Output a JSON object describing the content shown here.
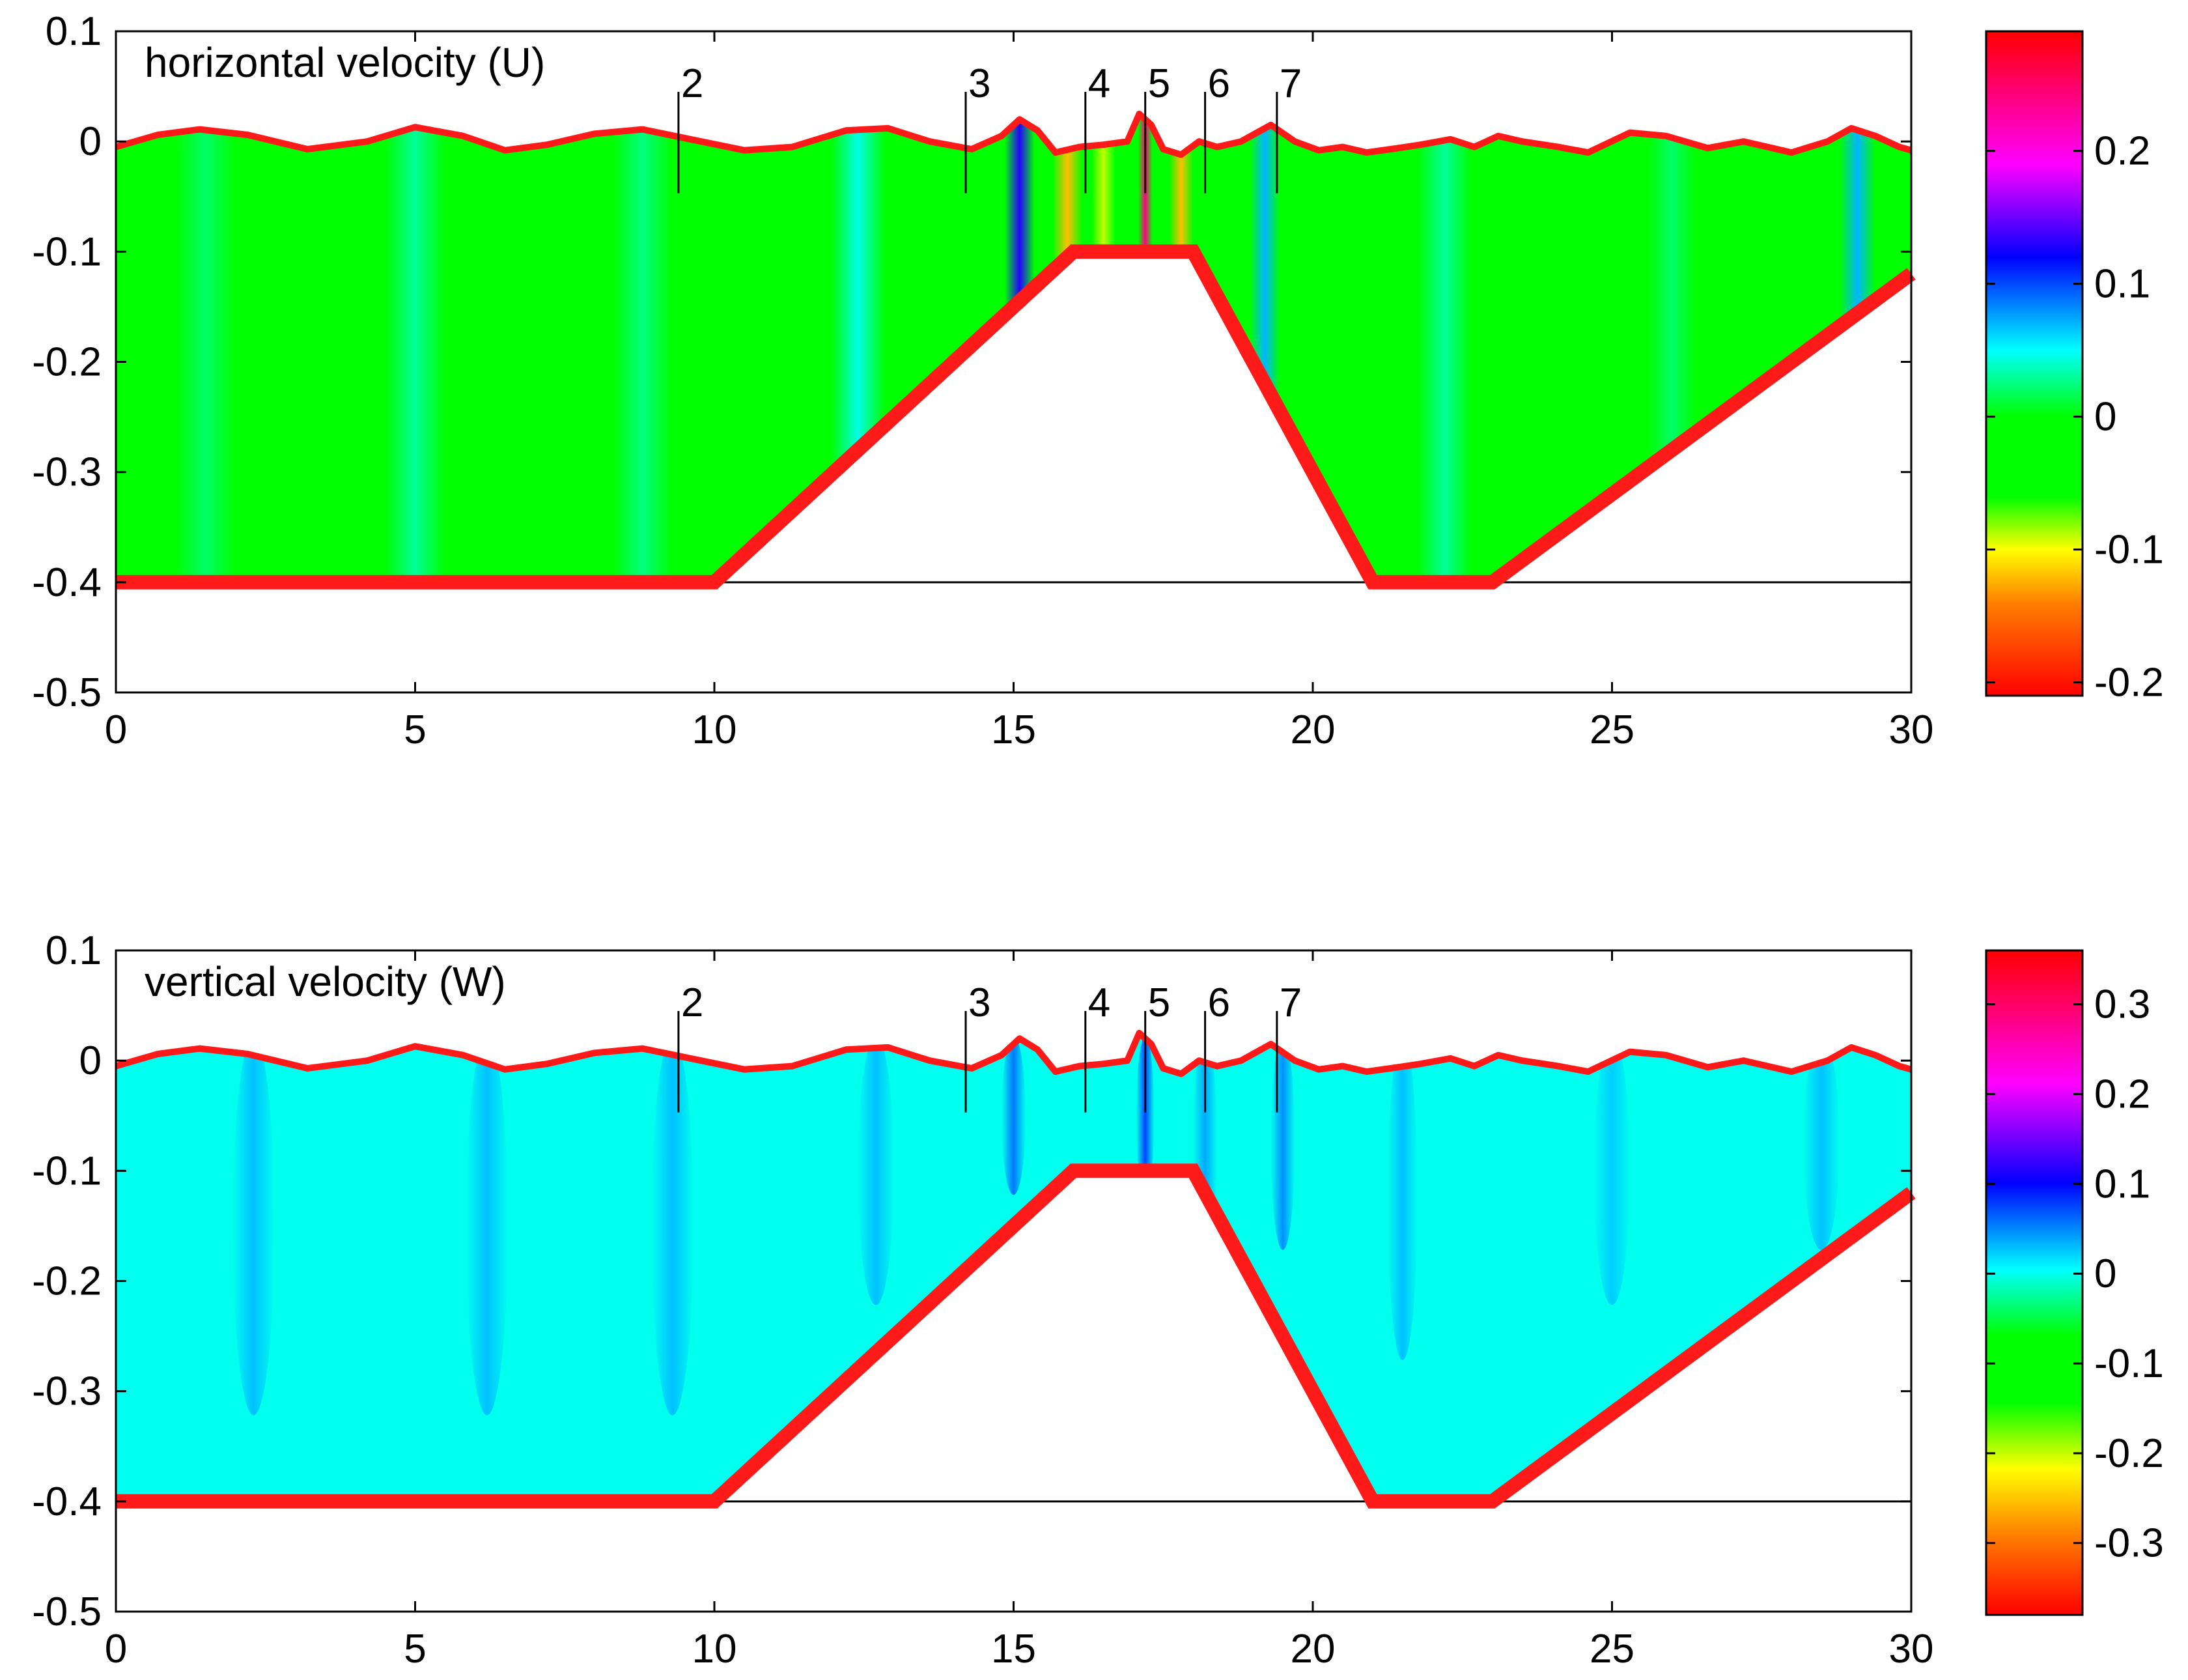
{
  "chart_data": [
    {
      "type": "heatmap",
      "title": "horizontal velocity (U)",
      "xlim": [
        0,
        30
      ],
      "ylim": [
        -0.5,
        0.1
      ],
      "xticks": [
        0,
        5,
        10,
        15,
        20,
        25,
        30
      ],
      "xtick_labels": [
        "0",
        "5",
        "10",
        "15",
        "20",
        "25",
        "30"
      ],
      "yticks": [
        0.1,
        0,
        -0.1,
        -0.2,
        -0.3,
        -0.4,
        -0.5
      ],
      "ytick_labels": [
        "0.1",
        "0",
        "-0.1",
        "-0.2",
        "-0.3",
        "-0.4",
        "-0.5"
      ],
      "colorbar": {
        "range": [
          -0.21,
          0.29
        ],
        "ticks": [
          0.2,
          0.1,
          0,
          -0.1,
          -0.2
        ],
        "tick_labels": [
          "0.2",
          "0.1",
          "0",
          "-0.1",
          "-0.2"
        ]
      },
      "background_value": -0.04,
      "features": [
        {
          "x": 1.5,
          "v": 0.02,
          "w": 0.5
        },
        {
          "x": 5.0,
          "v": 0.03,
          "w": 0.5
        },
        {
          "x": 8.8,
          "v": 0.025,
          "w": 0.5
        },
        {
          "x": 12.4,
          "v": 0.045,
          "w": 0.45
        },
        {
          "x": 15.1,
          "v": 0.13,
          "w": 0.25
        },
        {
          "x": 15.9,
          "v": -0.12,
          "w": 0.25
        },
        {
          "x": 16.5,
          "v": -0.09,
          "w": 0.2
        },
        {
          "x": 17.2,
          "v": 0.24,
          "w": 0.12
        },
        {
          "x": 17.8,
          "v": -0.12,
          "w": 0.2
        },
        {
          "x": 19.2,
          "v": 0.07,
          "w": 0.25
        },
        {
          "x": 22.2,
          "v": 0.03,
          "w": 0.45
        },
        {
          "x": 26.0,
          "v": 0.02,
          "w": 0.4
        },
        {
          "x": 29.1,
          "v": 0.07,
          "w": 0.3
        }
      ]
    },
    {
      "type": "heatmap",
      "title": "vertical velocity (W)",
      "xlim": [
        0,
        30
      ],
      "ylim": [
        -0.5,
        0.1
      ],
      "xticks": [
        0,
        5,
        10,
        15,
        20,
        25,
        30
      ],
      "xtick_labels": [
        "0",
        "5",
        "10",
        "15",
        "20",
        "25",
        "30"
      ],
      "yticks": [
        0.1,
        0,
        -0.1,
        -0.2,
        -0.3,
        -0.4,
        -0.5
      ],
      "ytick_labels": [
        "0.1",
        "0",
        "-0.1",
        "-0.2",
        "-0.3",
        "-0.4",
        "-0.5"
      ],
      "colorbar": {
        "range": [
          -0.38,
          0.36
        ],
        "ticks": [
          0.3,
          0.2,
          0.1,
          0,
          -0.1,
          -0.2,
          -0.3
        ],
        "tick_labels": [
          "0.3",
          "0.2",
          "0.1",
          "0",
          "-0.1",
          "-0.2",
          "-0.3"
        ]
      },
      "background_value": 0.0,
      "features": [
        {
          "x": 2.3,
          "v": 0.03,
          "w": 0.35,
          "depth": 0.3
        },
        {
          "x": 6.2,
          "v": 0.03,
          "w": 0.35,
          "depth": 0.3
        },
        {
          "x": 9.3,
          "v": 0.03,
          "w": 0.35,
          "depth": 0.3
        },
        {
          "x": 12.7,
          "v": 0.03,
          "w": 0.3,
          "depth": 0.2
        },
        {
          "x": 15.0,
          "v": 0.06,
          "w": 0.2,
          "depth": 0.1
        },
        {
          "x": 17.2,
          "v": 0.08,
          "w": 0.15,
          "depth": 0.1
        },
        {
          "x": 18.2,
          "v": 0.04,
          "w": 0.2,
          "depth": 0.15
        },
        {
          "x": 19.5,
          "v": 0.05,
          "w": 0.2,
          "depth": 0.15
        },
        {
          "x": 21.5,
          "v": 0.03,
          "w": 0.25,
          "depth": 0.25
        },
        {
          "x": 25.0,
          "v": 0.025,
          "w": 0.3,
          "depth": 0.2
        },
        {
          "x": 28.5,
          "v": 0.03,
          "w": 0.3,
          "depth": 0.15
        }
      ]
    }
  ],
  "bathymetry": {
    "x": [
      0,
      10,
      16,
      18,
      21,
      23,
      30
    ],
    "z": [
      -0.4,
      -0.4,
      -0.1,
      -0.1,
      -0.4,
      -0.4,
      -0.12
    ]
  },
  "free_surface": {
    "x": [
      0,
      0.7,
      1.4,
      2.2,
      3.2,
      4.2,
      5.0,
      5.8,
      6.5,
      7.2,
      8.0,
      8.8,
      9.6,
      10.5,
      11.3,
      12.2,
      12.9,
      13.6,
      14.3,
      14.8,
      15.1,
      15.4,
      15.7,
      16.1,
      16.5,
      16.9,
      17.1,
      17.3,
      17.5,
      17.8,
      18.1,
      18.4,
      18.8,
      19.3,
      19.7,
      20.1,
      20.5,
      20.9,
      21.3,
      21.8,
      22.3,
      22.7,
      23.1,
      23.5,
      24.1,
      24.6,
      25.3,
      25.9,
      26.6,
      27.2,
      28.0,
      28.6,
      29.0,
      29.4,
      29.8,
      30.0
    ],
    "eta": [
      -0.005,
      0.006,
      0.011,
      0.006,
      -0.007,
      0.0,
      0.013,
      0.005,
      -0.008,
      -0.003,
      0.007,
      0.011,
      0.002,
      -0.008,
      -0.005,
      0.01,
      0.012,
      0.0,
      -0.007,
      0.005,
      0.02,
      0.01,
      -0.01,
      -0.005,
      -0.003,
      0.0,
      0.025,
      0.015,
      -0.007,
      -0.012,
      0.0,
      -0.005,
      0.0,
      0.015,
      0.0,
      -0.008,
      -0.005,
      -0.01,
      -0.007,
      -0.003,
      0.002,
      -0.005,
      0.005,
      0.0,
      -0.005,
      -0.01,
      0.008,
      0.005,
      -0.006,
      0.0,
      -0.01,
      0.0,
      0.012,
      0.005,
      -0.005,
      -0.008
    ]
  },
  "gauges": {
    "labels": [
      "2",
      "3",
      "4",
      "5",
      "6",
      "7"
    ],
    "x": [
      9.4,
      14.2,
      16.2,
      17.2,
      18.2,
      19.4
    ]
  },
  "colors": {
    "boundary": "#ff1a1a",
    "frame": "#000000",
    "background": "#ffffff"
  }
}
